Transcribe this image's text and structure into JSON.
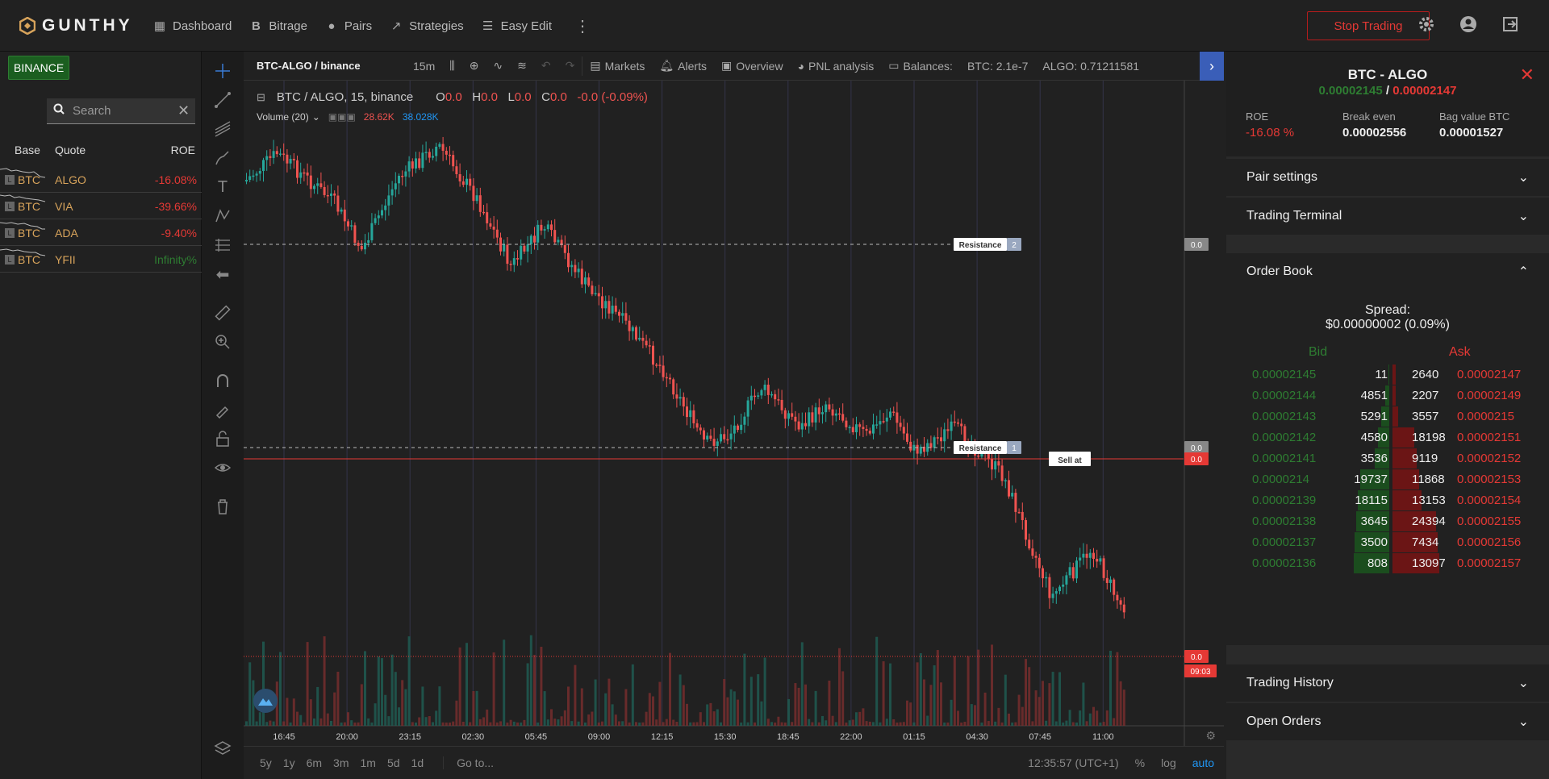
{
  "app": {
    "name": "GUNTHY"
  },
  "nav": {
    "dashboard": "Dashboard",
    "bitrage": "Bitrage",
    "pairs": "Pairs",
    "strategies": "Strategies",
    "easy_edit": "Easy Edit",
    "stop_trading": "Stop Trading"
  },
  "left": {
    "exchange": "BINANCE",
    "search_placeholder": "Search",
    "col_base": "Base",
    "col_quote": "Quote",
    "col_roe": "ROE",
    "pairs": [
      {
        "lev": "L",
        "base": "BTC",
        "quote": "ALGO",
        "roe": "-16.08%"
      },
      {
        "lev": "L",
        "base": "BTC",
        "quote": "VIA",
        "roe": "-39.66%"
      },
      {
        "lev": "L",
        "base": "BTC",
        "quote": "ADA",
        "roe": "-9.40%"
      },
      {
        "lev": "L",
        "base": "BTC",
        "quote": "YFII",
        "roe": "Infinity%"
      }
    ]
  },
  "chart": {
    "symbol": "BTC-ALGO / binance",
    "interval": "15m",
    "markets": "Markets",
    "alerts": "Alerts",
    "overview": "Overview",
    "pnl": "PNL analysis",
    "balances_label": "Balances:",
    "balance_btc": "BTC: 2.1e-7",
    "balance_algo": "ALGO: 0.71211581",
    "legend_title": "BTC / ALGO, 15, binance",
    "o_label": "O",
    "o_val": "0.0",
    "h_label": "H",
    "h_val": "0.0",
    "l_label": "L",
    "l_val": "0.0",
    "c_label": "C",
    "c_val": "0.0",
    "change": "-0.0 (-0.09%)",
    "volume_label": "Volume (20)",
    "vol_a": "28.62K",
    "vol_b": "38.028K",
    "resistance_label": "Resistance",
    "resistance_2_num": "2",
    "resistance_1_num": "1",
    "sell_label": "Sell at",
    "price_tag": "0.0",
    "countdown": "09:03",
    "time_labels": [
      "16:45",
      "20:00",
      "23:15",
      "02:30",
      "05:45",
      "09:00",
      "12:15",
      "15:30",
      "18:45",
      "22:00",
      "01:15",
      "04:30",
      "07:45",
      "11:00"
    ],
    "ranges": [
      "5y",
      "1y",
      "6m",
      "3m",
      "1m",
      "5d",
      "1d"
    ],
    "goto": "Go to...",
    "clock": "12:35:57 (UTC+1)",
    "pct": "%",
    "log": "log",
    "auto": "auto"
  },
  "right": {
    "title": "BTC - ALGO",
    "bid_price": "0.00002145",
    "separator": "/",
    "ask_price": "0.00002147",
    "roe_label": "ROE",
    "roe_value": "-16.08 %",
    "break_even_label": "Break even",
    "break_even_value": "0.00002556",
    "bag_label": "Bag value BTC",
    "bag_value": "0.00001527",
    "pair_settings": "Pair settings",
    "trading_terminal": "Trading Terminal",
    "order_book": "Order Book",
    "spread_label": "Spread:",
    "spread_value": "$0.00000002 (0.09%)",
    "bid_header": "Bid",
    "ask_header": "Ask",
    "orders": [
      {
        "bid_price": "0.00002145",
        "bid_qty": "11",
        "ask_qty": "2640",
        "ask_price": "0.00002147",
        "bid_fill": 0.02,
        "ask_fill": 0.06
      },
      {
        "bid_price": "0.00002144",
        "bid_qty": "4851",
        "ask_qty": "2207",
        "ask_price": "0.00002149",
        "bid_fill": 0.1,
        "ask_fill": 0.06
      },
      {
        "bid_price": "0.00002143",
        "bid_qty": "5291",
        "ask_qty": "3557",
        "ask_price": "0.0000215",
        "bid_fill": 0.2,
        "ask_fill": 0.12
      },
      {
        "bid_price": "0.00002142",
        "bid_qty": "4580",
        "ask_qty": "18198",
        "ask_price": "0.00002151",
        "bid_fill": 0.28,
        "ask_fill": 0.45
      },
      {
        "bid_price": "0.00002141",
        "bid_qty": "3536",
        "ask_qty": "9119",
        "ask_price": "0.00002152",
        "bid_fill": 0.35,
        "ask_fill": 0.5
      },
      {
        "bid_price": "0.0000214",
        "bid_qty": "19737",
        "ask_qty": "11868",
        "ask_price": "0.00002153",
        "bid_fill": 0.72,
        "ask_fill": 0.55
      },
      {
        "bid_price": "0.00002139",
        "bid_qty": "18115",
        "ask_qty": "13153",
        "ask_price": "0.00002154",
        "bid_fill": 0.78,
        "ask_fill": 0.6
      },
      {
        "bid_price": "0.00002138",
        "bid_qty": "3645",
        "ask_qty": "24394",
        "ask_price": "0.00002155",
        "bid_fill": 0.82,
        "ask_fill": 0.9
      },
      {
        "bid_price": "0.00002137",
        "bid_qty": "3500",
        "ask_qty": "7434",
        "ask_price": "0.00002156",
        "bid_fill": 0.86,
        "ask_fill": 0.94
      },
      {
        "bid_price": "0.00002136",
        "bid_qty": "808",
        "ask_qty": "13097",
        "ask_price": "0.00002157",
        "bid_fill": 0.88,
        "ask_fill": 0.97
      }
    ],
    "trading_history": "Trading History",
    "open_orders": "Open Orders"
  },
  "colors": {
    "bull": "#26a69a",
    "bear": "#ef5350",
    "accent": "#3a5eb8",
    "stop": "#e53935"
  }
}
